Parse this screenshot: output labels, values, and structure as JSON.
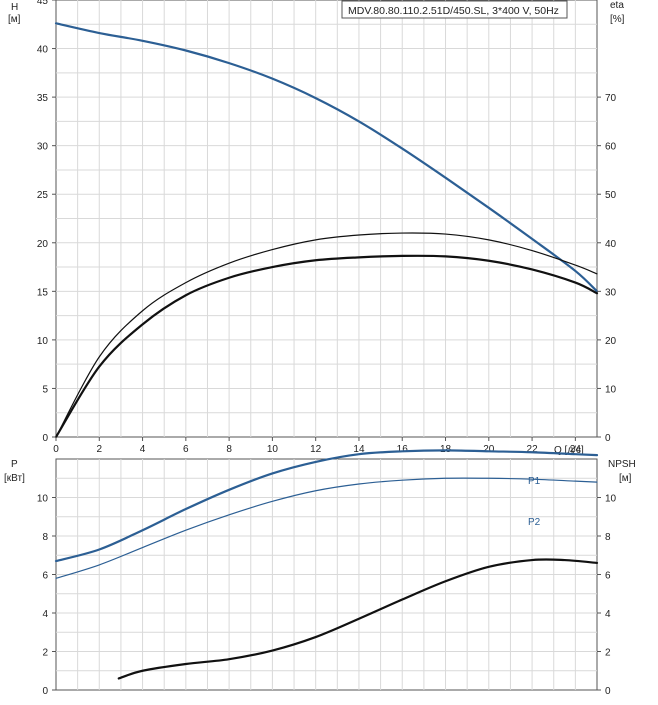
{
  "colors": {
    "blue": "#2c5f94",
    "black": "#111111",
    "grid": "#d9d9d9",
    "text": "#222222"
  },
  "chart_data": [
    {
      "id": "head-efficiency",
      "type": "line",
      "title": "MDV.80.80.110.2.51D/450.SL, 3*400 V, 50Hz",
      "xlabel": "Q [л/с]",
      "xlim": [
        0,
        25
      ],
      "xticks": [
        0,
        2,
        4,
        6,
        8,
        10,
        12,
        14,
        16,
        18,
        20,
        22,
        24
      ],
      "ylabel_left": [
        "H",
        "[м]"
      ],
      "ylim_left": [
        0,
        45
      ],
      "yticks_left": [
        0,
        5,
        10,
        15,
        20,
        25,
        30,
        35,
        40,
        45
      ],
      "ylabel_right": [
        "eta",
        "[%]"
      ],
      "ylim_right": [
        0,
        90
      ],
      "yticks_right": [
        0,
        10,
        20,
        30,
        40,
        50,
        60,
        70
      ],
      "grid": true,
      "series": [
        {
          "axis": "left",
          "color": "#2c5f94",
          "width": 2.2,
          "x": [
            0,
            2,
            4,
            6,
            8,
            10,
            12,
            14,
            16,
            18,
            20,
            22,
            24,
            25
          ],
          "y": [
            42.6,
            41.6,
            40.8,
            39.8,
            38.5,
            36.9,
            34.9,
            32.5,
            29.7,
            26.7,
            23.6,
            20.4,
            17.1,
            15.0
          ]
        },
        {
          "axis": "right",
          "color": "#111111",
          "width": 1.2,
          "x": [
            0,
            2,
            4,
            6,
            8,
            10,
            12,
            14,
            16,
            18,
            20,
            22,
            24,
            25
          ],
          "y": [
            0,
            16.5,
            26,
            31.8,
            35.8,
            38.6,
            40.6,
            41.6,
            42.0,
            41.8,
            40.6,
            38.4,
            35.4,
            33.6
          ]
        },
        {
          "axis": "right",
          "color": "#111111",
          "width": 2.2,
          "x": [
            0,
            2,
            4,
            6,
            8,
            10,
            12,
            14,
            16,
            18,
            20,
            22,
            24,
            25
          ],
          "y": [
            0,
            14.5,
            23.2,
            29.2,
            32.8,
            35.0,
            36.4,
            37.0,
            37.3,
            37.2,
            36.3,
            34.5,
            31.8,
            29.6
          ]
        }
      ]
    },
    {
      "id": "power-npsh",
      "type": "line",
      "xlim": [
        0,
        25
      ],
      "ylabel_left": [
        "P",
        "[кВт]"
      ],
      "ylim_left": [
        0,
        12
      ],
      "yticks_left": [
        0,
        2,
        4,
        6,
        8,
        10
      ],
      "ylabel_right": [
        "NPSH",
        "[м]"
      ],
      "ylim_right": [
        0,
        12
      ],
      "yticks_right": [
        0,
        2,
        4,
        6,
        8,
        10
      ],
      "grid": true,
      "series": [
        {
          "name": "P1",
          "axis": "left",
          "color": "#2c5f94",
          "width": 2.2,
          "x": [
            0,
            2,
            4,
            6,
            8,
            10,
            12,
            14,
            16,
            18,
            20,
            22,
            24,
            25
          ],
          "y": [
            6.7,
            7.3,
            8.3,
            9.4,
            10.4,
            11.25,
            11.85,
            12.25,
            12.4,
            12.45,
            12.4,
            12.35,
            12.25,
            12.2
          ]
        },
        {
          "name": "P2",
          "axis": "left",
          "color": "#2c5f94",
          "width": 1.2,
          "x": [
            0,
            2,
            4,
            6,
            8,
            10,
            12,
            14,
            16,
            18,
            20,
            22,
            24,
            25
          ],
          "y": [
            5.8,
            6.5,
            7.4,
            8.3,
            9.1,
            9.8,
            10.35,
            10.7,
            10.9,
            11.0,
            11.0,
            10.95,
            10.85,
            10.8
          ]
        },
        {
          "axis": "right",
          "color": "#111111",
          "width": 2.2,
          "x": [
            2.9,
            4,
            6,
            8,
            10,
            12,
            14,
            16,
            18,
            20,
            22,
            23.5,
            25
          ],
          "y": [
            0.6,
            1.0,
            1.35,
            1.6,
            2.05,
            2.75,
            3.7,
            4.7,
            5.65,
            6.4,
            6.75,
            6.75,
            6.6
          ]
        }
      ]
    }
  ]
}
